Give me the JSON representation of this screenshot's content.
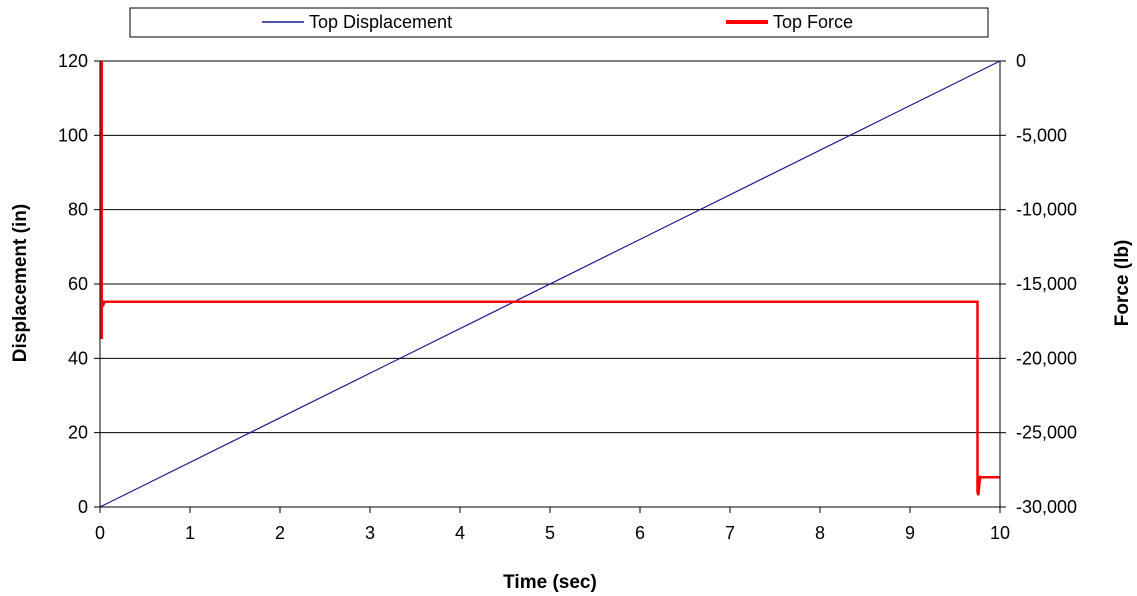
{
  "chart_data": {
    "type": "line",
    "legend": {
      "placement": "top",
      "entries": [
        "Top Displacement",
        "Top Force"
      ]
    },
    "xlabel": "Time (sec)",
    "ylabel_left": "Displacement (in)",
    "ylabel_right": "Force (lb)",
    "xlim": [
      0,
      10
    ],
    "ylim_left": [
      0,
      120
    ],
    "ylim_right": [
      -30000,
      0
    ],
    "x_ticks": [
      "0",
      "1",
      "2",
      "3",
      "4",
      "5",
      "6",
      "7",
      "8",
      "9",
      "10"
    ],
    "y_left_ticks": [
      "0",
      "20",
      "40",
      "60",
      "80",
      "100",
      "120"
    ],
    "y_right_ticks": [
      "-30,000",
      "-25,000",
      "-20,000",
      "-15,000",
      "-10,000",
      "-5,000",
      "0"
    ],
    "grid": "horizontal",
    "series": [
      {
        "name": "Top Displacement",
        "axis": "left",
        "color": "#1a1a8c",
        "x": [
          0,
          10
        ],
        "y": [
          0,
          120
        ]
      },
      {
        "name": "Top Force",
        "axis": "right",
        "color": "#ff0000",
        "x": [
          0.02,
          0.02,
          0.02,
          0.03,
          0.05,
          9.75,
          9.75,
          9.76,
          9.78,
          9.78,
          10
        ],
        "y": [
          0,
          -18700,
          -16000,
          -16500,
          -16200,
          -16200,
          -29000,
          -29200,
          -27900,
          -28000,
          -28000
        ]
      }
    ]
  }
}
